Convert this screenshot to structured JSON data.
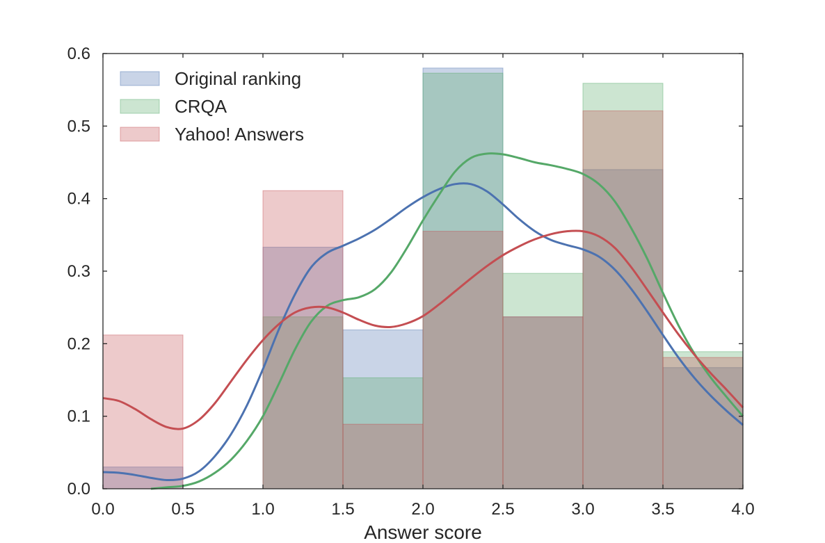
{
  "chart_data": {
    "type": "bar",
    "title": "",
    "xlabel": "Answer score",
    "ylabel": "",
    "xlim": [
      0.0,
      4.0
    ],
    "ylim": [
      0.0,
      0.6
    ],
    "grid": false,
    "legend_position": "top-left",
    "bin_edges": [
      0.0,
      0.5,
      1.0,
      1.5,
      2.0,
      2.5,
      3.0,
      3.5,
      4.0
    ],
    "x_ticks": [
      "0.0",
      "0.5",
      "1.0",
      "1.5",
      "2.0",
      "2.5",
      "3.0",
      "3.5",
      "4.0"
    ],
    "y_ticks": [
      "0.0",
      "0.1",
      "0.2",
      "0.3",
      "0.4",
      "0.5",
      "0.6"
    ],
    "series": [
      {
        "name": "Original ranking",
        "color": "#4c72b0",
        "values": [
          0.03,
          0.0,
          0.333,
          0.219,
          0.58,
          0.237,
          0.44,
          0.167
        ],
        "kde": [
          [
            0.0,
            0.023
          ],
          [
            0.1,
            0.022
          ],
          [
            0.2,
            0.019
          ],
          [
            0.3,
            0.015
          ],
          [
            0.4,
            0.012
          ],
          [
            0.5,
            0.014
          ],
          [
            0.6,
            0.024
          ],
          [
            0.7,
            0.045
          ],
          [
            0.8,
            0.075
          ],
          [
            0.9,
            0.115
          ],
          [
            1.0,
            0.165
          ],
          [
            1.1,
            0.22
          ],
          [
            1.2,
            0.268
          ],
          [
            1.3,
            0.305
          ],
          [
            1.4,
            0.325
          ],
          [
            1.5,
            0.335
          ],
          [
            1.6,
            0.345
          ],
          [
            1.7,
            0.357
          ],
          [
            1.8,
            0.372
          ],
          [
            1.9,
            0.388
          ],
          [
            2.0,
            0.402
          ],
          [
            2.1,
            0.413
          ],
          [
            2.2,
            0.42
          ],
          [
            2.3,
            0.42
          ],
          [
            2.4,
            0.41
          ],
          [
            2.5,
            0.392
          ],
          [
            2.6,
            0.372
          ],
          [
            2.7,
            0.355
          ],
          [
            2.8,
            0.343
          ],
          [
            2.9,
            0.336
          ],
          [
            3.0,
            0.33
          ],
          [
            3.1,
            0.32
          ],
          [
            3.2,
            0.302
          ],
          [
            3.3,
            0.276
          ],
          [
            3.4,
            0.245
          ],
          [
            3.5,
            0.212
          ],
          [
            3.6,
            0.18
          ],
          [
            3.7,
            0.152
          ],
          [
            3.8,
            0.128
          ],
          [
            3.9,
            0.107
          ],
          [
            4.0,
            0.088
          ]
        ]
      },
      {
        "name": "CRQA",
        "color": "#55a868",
        "values": [
          0.0,
          0.0,
          0.237,
          0.153,
          0.573,
          0.297,
          0.559,
          0.189
        ],
        "kde": [
          [
            0.3,
            0.0
          ],
          [
            0.4,
            0.002
          ],
          [
            0.5,
            0.004
          ],
          [
            0.6,
            0.01
          ],
          [
            0.7,
            0.022
          ],
          [
            0.8,
            0.04
          ],
          [
            0.9,
            0.066
          ],
          [
            1.0,
            0.1
          ],
          [
            1.1,
            0.145
          ],
          [
            1.2,
            0.192
          ],
          [
            1.3,
            0.23
          ],
          [
            1.4,
            0.252
          ],
          [
            1.5,
            0.26
          ],
          [
            1.6,
            0.264
          ],
          [
            1.7,
            0.275
          ],
          [
            1.8,
            0.298
          ],
          [
            1.9,
            0.332
          ],
          [
            2.0,
            0.37
          ],
          [
            2.1,
            0.405
          ],
          [
            2.2,
            0.437
          ],
          [
            2.3,
            0.456
          ],
          [
            2.4,
            0.462
          ],
          [
            2.5,
            0.461
          ],
          [
            2.6,
            0.456
          ],
          [
            2.7,
            0.45
          ],
          [
            2.8,
            0.446
          ],
          [
            2.9,
            0.441
          ],
          [
            3.0,
            0.434
          ],
          [
            3.1,
            0.42
          ],
          [
            3.2,
            0.396
          ],
          [
            3.3,
            0.36
          ],
          [
            3.4,
            0.318
          ],
          [
            3.5,
            0.27
          ],
          [
            3.6,
            0.224
          ],
          [
            3.7,
            0.185
          ],
          [
            3.8,
            0.153
          ],
          [
            3.9,
            0.126
          ],
          [
            4.0,
            0.1
          ]
        ]
      },
      {
        "name": "Yahoo! Answers",
        "color": "#c44e52",
        "values": [
          0.212,
          0.0,
          0.411,
          0.089,
          0.355,
          0.237,
          0.521,
          0.181
        ],
        "kde": [
          [
            0.0,
            0.125
          ],
          [
            0.1,
            0.121
          ],
          [
            0.2,
            0.11
          ],
          [
            0.3,
            0.096
          ],
          [
            0.4,
            0.085
          ],
          [
            0.5,
            0.083
          ],
          [
            0.6,
            0.095
          ],
          [
            0.7,
            0.118
          ],
          [
            0.8,
            0.148
          ],
          [
            0.9,
            0.178
          ],
          [
            1.0,
            0.205
          ],
          [
            1.1,
            0.227
          ],
          [
            1.2,
            0.243
          ],
          [
            1.3,
            0.25
          ],
          [
            1.4,
            0.25
          ],
          [
            1.5,
            0.243
          ],
          [
            1.6,
            0.233
          ],
          [
            1.7,
            0.225
          ],
          [
            1.8,
            0.223
          ],
          [
            1.9,
            0.228
          ],
          [
            2.0,
            0.238
          ],
          [
            2.1,
            0.254
          ],
          [
            2.2,
            0.272
          ],
          [
            2.3,
            0.29
          ],
          [
            2.4,
            0.307
          ],
          [
            2.5,
            0.322
          ],
          [
            2.6,
            0.334
          ],
          [
            2.7,
            0.344
          ],
          [
            2.8,
            0.351
          ],
          [
            2.9,
            0.355
          ],
          [
            3.0,
            0.355
          ],
          [
            3.1,
            0.348
          ],
          [
            3.2,
            0.332
          ],
          [
            3.3,
            0.306
          ],
          [
            3.4,
            0.275
          ],
          [
            3.5,
            0.243
          ],
          [
            3.6,
            0.212
          ],
          [
            3.7,
            0.184
          ],
          [
            3.8,
            0.159
          ],
          [
            3.9,
            0.136
          ],
          [
            4.0,
            0.112
          ]
        ]
      }
    ]
  }
}
